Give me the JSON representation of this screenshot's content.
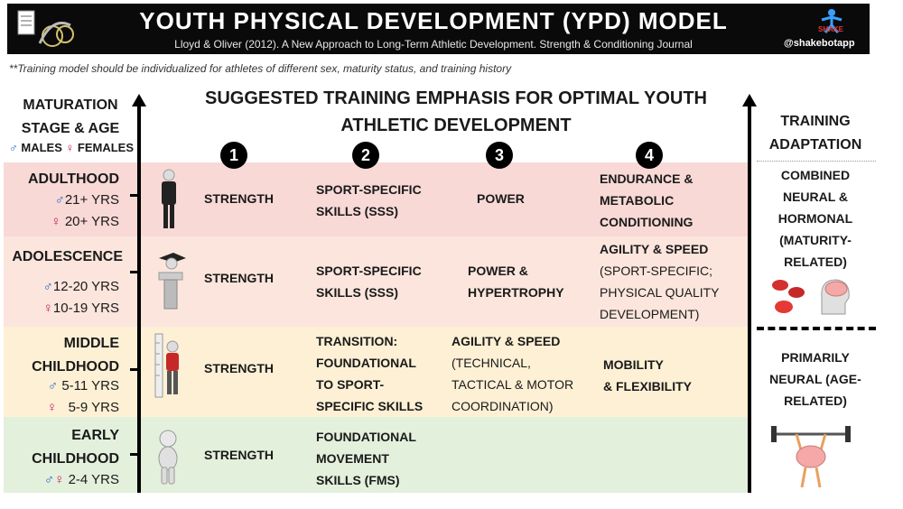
{
  "header": {
    "title": "YOUTH PHYSICAL DEVELOPMENT (YPD) MODEL",
    "citation": "Lloyd & Oliver (2012). A New Approach to Long-Term Athletic Development. Strength & Conditioning Journal",
    "handle": "@shakebotapp"
  },
  "note": "**Training model should be individualized for athletes of different sex, maturity status, and training history",
  "left_axis": {
    "heading_line1": "MATURATION",
    "heading_line2": "STAGE & AGE",
    "males_label": "MALES",
    "females_label": "FEMALES"
  },
  "center_title_line1": "SUGGESTED TRAINING EMPHASIS FOR OPTIMAL YOUTH",
  "center_title_line2": "ATHLETIC DEVELOPMENT",
  "columns": [
    "1",
    "2",
    "3",
    "4"
  ],
  "rows": [
    {
      "stage": "ADULTHOOD",
      "male_age": "21+ YRS",
      "female_age": "20+ YRS",
      "c1": "STRENGTH",
      "c2": [
        "SPORT-SPECIFIC",
        "SKILLS (SSS)"
      ],
      "c3": [
        "POWER"
      ],
      "c4": [
        "ENDURANCE &",
        "METABOLIC",
        "CONDITIONING"
      ]
    },
    {
      "stage": "ADOLESCENCE",
      "male_age": "12-20 YRS",
      "female_age": "10-19 YRS",
      "c1": "STRENGTH",
      "c2": [
        "SPORT-SPECIFIC",
        "SKILLS (SSS)"
      ],
      "c3": [
        "POWER &",
        "HYPERTROPHY"
      ],
      "c4": [
        "AGILITY & SPEED",
        "(SPORT-SPECIFIC;",
        "PHYSICAL QUALITY",
        "DEVELOPMENT)"
      ]
    },
    {
      "stage_line1": "MIDDLE",
      "stage_line2": "CHILDHOOD",
      "male_age": "5-11 YRS",
      "female_age": "5-9 YRS",
      "c1": "STRENGTH",
      "c2": [
        "TRANSITION:",
        "FOUNDATIONAL",
        "TO SPORT-",
        "SPECIFIC SKILLS"
      ],
      "c3": [
        "AGILITY & SPEED",
        "(TECHNICAL,",
        "TACTICAL & MOTOR",
        "COORDINATION)"
      ],
      "c4": [
        "MOBILITY",
        "& FLEXIBILITY"
      ]
    },
    {
      "stage_line1": "EARLY",
      "stage_line2": "CHILDHOOD",
      "both_age": "2-4 YRS",
      "c1": "STRENGTH",
      "c2": [
        "FOUNDATIONAL",
        "MOVEMENT",
        "SKILLS (FMS)"
      ]
    }
  ],
  "right_axis": {
    "heading_line1": "TRAINING",
    "heading_line2": "ADAPTATION",
    "upper": [
      "COMBINED",
      "NEURAL &",
      "HORMONAL",
      "(MATURITY-",
      "RELATED)"
    ],
    "lower": [
      "PRIMARILY",
      "NEURAL (AGE-",
      "RELATED)"
    ]
  },
  "colors": {
    "adulthood": "#f8d9d6",
    "adolescence": "#fbe5dc",
    "middle_childhood": "#fdf0d5",
    "early_childhood": "#e3f0dc",
    "male": "#1565c0",
    "female": "#c2185b"
  },
  "icons": [
    "gymnast-logo-icon",
    "shakebot-logo-icon",
    "male-symbol-icon",
    "female-symbol-icon",
    "adult-figure-icon",
    "graduate-figure-icon",
    "child-height-figure-icon",
    "toddler-figure-icon",
    "red-blood-cells-icon",
    "brain-head-icon",
    "brain-lifting-barbell-icon"
  ]
}
